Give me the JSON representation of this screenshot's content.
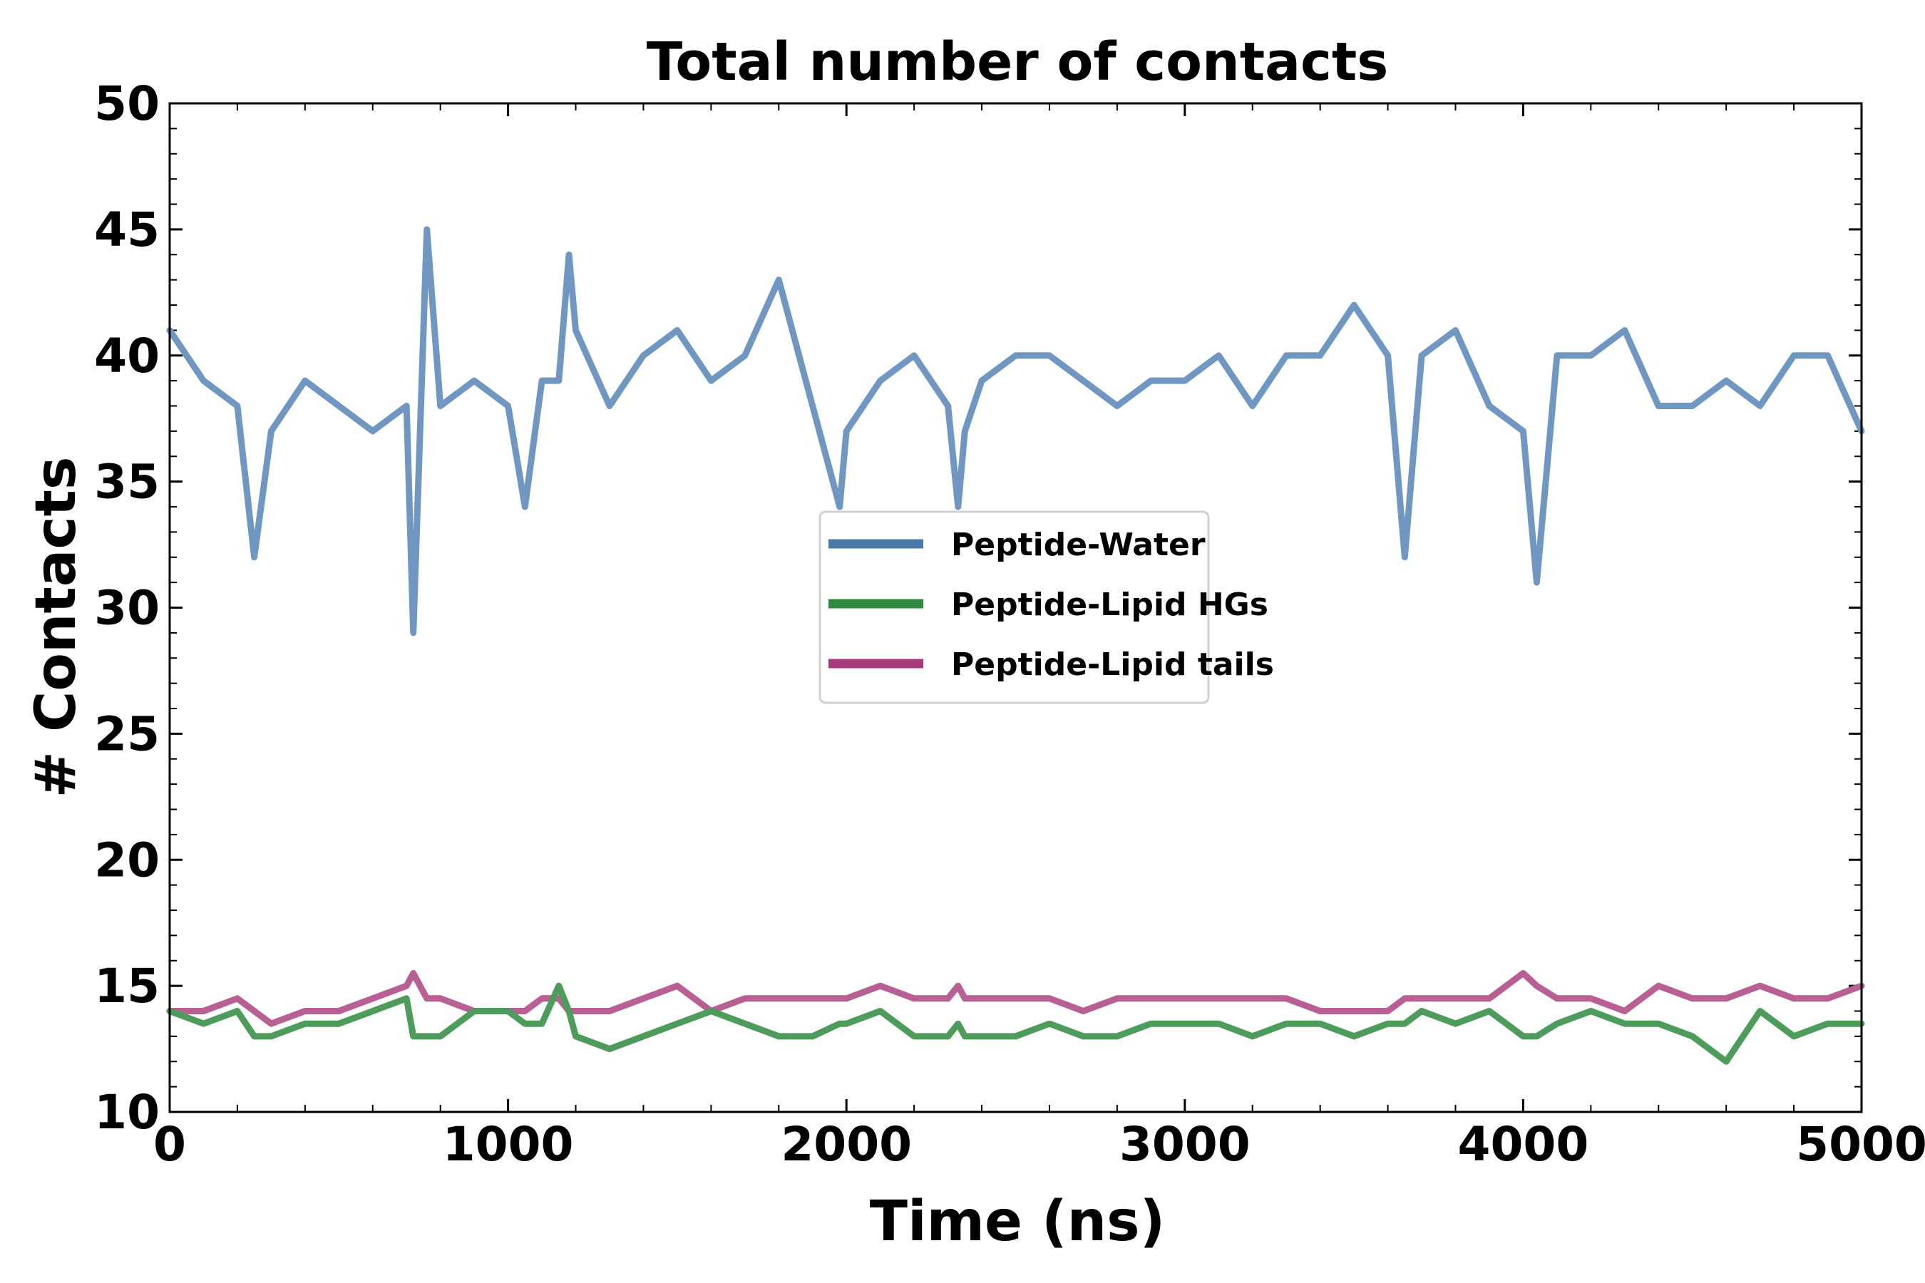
{
  "chart_data": {
    "type": "line",
    "title": "Total number of contacts",
    "xlabel": "Time (ns)",
    "ylabel": "# Contacts",
    "xlim": [
      0,
      5000
    ],
    "ylim": [
      10,
      50
    ],
    "xticks": [
      0,
      1000,
      2000,
      3000,
      4000,
      5000
    ],
    "yticks": [
      10,
      15,
      20,
      25,
      30,
      35,
      40,
      45,
      50
    ],
    "grid": false,
    "legend_position": "center",
    "x": [
      0,
      100,
      200,
      250,
      300,
      400,
      500,
      600,
      700,
      720,
      760,
      800,
      900,
      1000,
      1050,
      1100,
      1150,
      1180,
      1200,
      1300,
      1400,
      1500,
      1600,
      1700,
      1800,
      1900,
      1980,
      2000,
      2100,
      2200,
      2300,
      2330,
      2350,
      2400,
      2500,
      2600,
      2700,
      2800,
      2900,
      3000,
      3100,
      3200,
      3300,
      3400,
      3500,
      3600,
      3650,
      3700,
      3800,
      3900,
      4000,
      4040,
      4100,
      4200,
      4300,
      4400,
      4500,
      4600,
      4700,
      4800,
      4900,
      5000
    ],
    "series": [
      {
        "name": "Peptide-Water",
        "color": "#6f97c1",
        "legend_color": "#4a78a8",
        "values": [
          41,
          39,
          38,
          32,
          37,
          39,
          38,
          37,
          38,
          29,
          45,
          38,
          39,
          38,
          34,
          39,
          39,
          44,
          41,
          38,
          40,
          41,
          39,
          40,
          43,
          38,
          34,
          37,
          39,
          40,
          38,
          34,
          37,
          39,
          40,
          40,
          39,
          38,
          39,
          39,
          40,
          38,
          40,
          40,
          42,
          40,
          32,
          40,
          41,
          38,
          37,
          31,
          40,
          40,
          41,
          38,
          38,
          39,
          38,
          40,
          40,
          37
        ]
      },
      {
        "name": "Peptide-Lipid HGs",
        "color": "#4e9c5c",
        "legend_color": "#2f8a3f",
        "values": [
          14,
          13.5,
          14,
          13,
          13,
          13.5,
          13.5,
          14,
          14.5,
          13,
          13,
          13,
          14,
          14,
          13.5,
          13.5,
          15,
          14,
          13,
          12.5,
          13,
          13.5,
          14,
          13.5,
          13,
          13,
          13.5,
          13.5,
          14,
          13,
          13,
          13.5,
          13,
          13,
          13,
          13.5,
          13,
          13,
          13.5,
          13.5,
          13.5,
          13,
          13.5,
          13.5,
          13,
          13.5,
          13.5,
          14,
          13.5,
          14,
          13,
          13,
          13.5,
          14,
          13.5,
          13.5,
          13,
          12,
          14,
          13,
          13.5,
          13.5
        ]
      },
      {
        "name": "Peptide-Lipid tails",
        "color": "#b85f94",
        "legend_color": "#a63a7a",
        "values": [
          14,
          14,
          14.5,
          14,
          13.5,
          14,
          14,
          14.5,
          15,
          15.5,
          14.5,
          14.5,
          14,
          14,
          14,
          14.5,
          14.5,
          14,
          14,
          14,
          14.5,
          15,
          14,
          14.5,
          14.5,
          14.5,
          14.5,
          14.5,
          15,
          14.5,
          14.5,
          15,
          14.5,
          14.5,
          14.5,
          14.5,
          14,
          14.5,
          14.5,
          14.5,
          14.5,
          14.5,
          14.5,
          14,
          14,
          14,
          14.5,
          14.5,
          14.5,
          14.5,
          15.5,
          15,
          14.5,
          14.5,
          14,
          15,
          14.5,
          14.5,
          15,
          14.5,
          14.5,
          15
        ]
      }
    ]
  }
}
